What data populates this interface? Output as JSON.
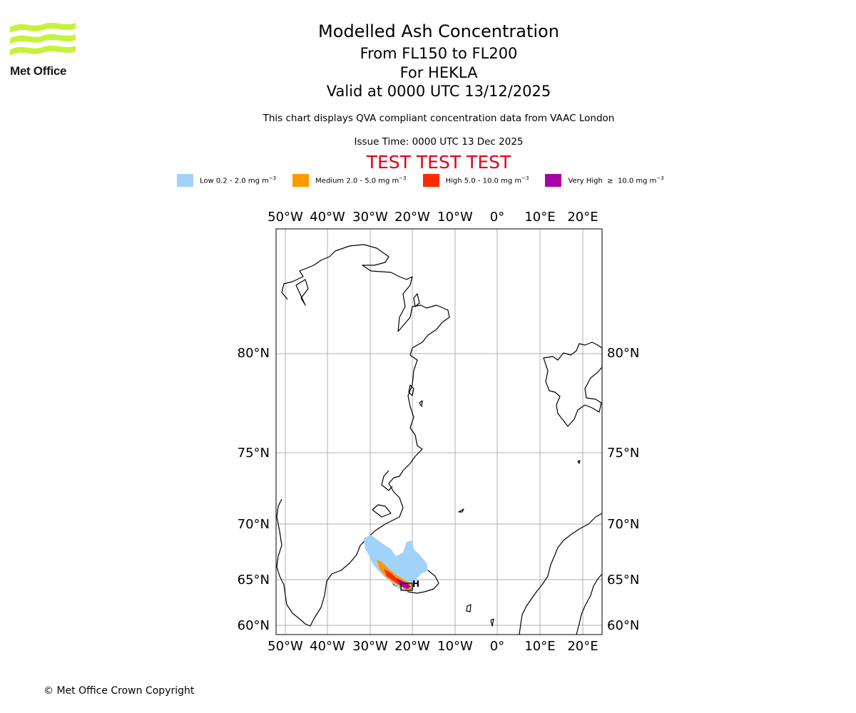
{
  "logo": {
    "name": "Met Office"
  },
  "header": {
    "title": "Modelled Ash Concentration",
    "levels": "From FL150 to FL200",
    "volcano": "For HEKLA",
    "valid": "Valid at 0000 UTC 13/12/2025",
    "description": "This chart displays QVA compliant concentration data from VAAC London",
    "issue_time": "Issue Time: 0000 UTC 13 Dec 2025",
    "test_banner": "TEST TEST TEST"
  },
  "legend": [
    {
      "label": "Low 0.2 - 2.0 mg m",
      "exp": "−3",
      "color": "#a0d2fa"
    },
    {
      "label": "Medium 2.0 - 5.0 mg m",
      "exp": "−3",
      "color": "#ff9900"
    },
    {
      "label": "High 5.0 - 10.0 mg m",
      "exp": "−3",
      "color": "#ff2a00"
    },
    {
      "label": "Very High  ≥  10.0 mg m",
      "exp": "−3",
      "color": "#aa00aa"
    }
  ],
  "map": {
    "lon_labels": [
      "50°W",
      "40°W",
      "30°W",
      "20°W",
      "10°W",
      "0°",
      "10°E",
      "20°E"
    ],
    "lat_labels": [
      "80°N",
      "75°N",
      "70°N",
      "65°N",
      "60°N"
    ],
    "volcano_marker": "H"
  },
  "footer": {
    "copyright": "© Met Office Crown Copyright"
  }
}
